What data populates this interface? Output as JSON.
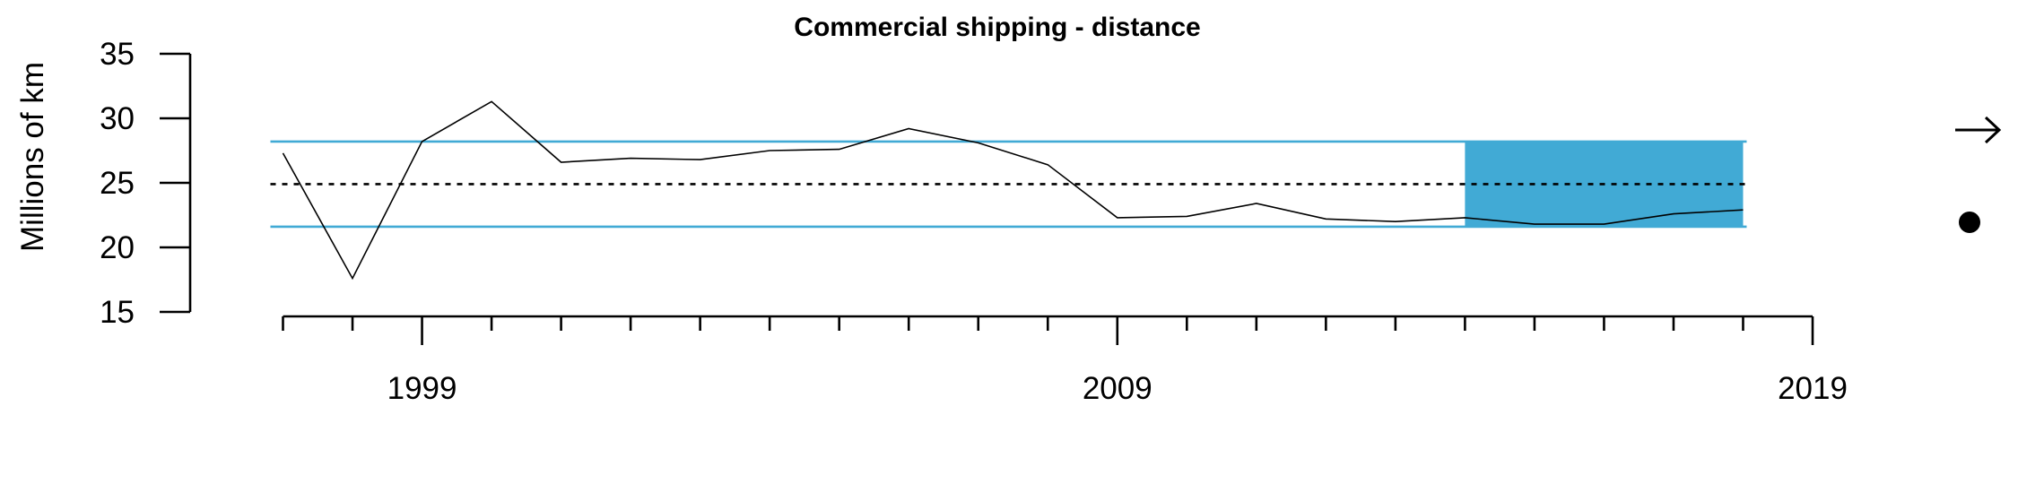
{
  "chart_data": {
    "type": "line",
    "title": "Commercial shipping - distance",
    "xlabel": "",
    "ylabel": "Millions of km",
    "xlim": [
      1996.8,
      2019
    ],
    "ylim": [
      15,
      35
    ],
    "y_ticks": [
      15,
      20,
      25,
      30,
      35
    ],
    "x_major_ticks": [
      1999,
      2009,
      2019
    ],
    "x_minor_ticks": [
      1997,
      1998,
      1999,
      2000,
      2001,
      2002,
      2003,
      2004,
      2005,
      2006,
      2007,
      2008,
      2009,
      2010,
      2011,
      2012,
      2013,
      2014,
      2015,
      2016,
      2017,
      2018,
      2019
    ],
    "grid": false,
    "series": [
      {
        "x": [
          1997,
          1998,
          1999,
          2000,
          2001,
          2002,
          2003,
          2004,
          2005,
          2006,
          2007,
          2008,
          2009,
          2010,
          2011,
          2012,
          2013,
          2014,
          2015,
          2016,
          2017,
          2018
        ],
        "values": [
          27.3,
          17.6,
          28.2,
          31.3,
          26.6,
          26.9,
          26.8,
          27.5,
          27.6,
          29.2,
          28.1,
          26.4,
          22.3,
          22.4,
          23.4,
          22.2,
          22.0,
          22.3,
          21.8,
          21.8,
          22.6,
          22.9
        ]
      }
    ],
    "reference_lines": {
      "mean": 24.9,
      "upper_sd": 28.2,
      "lower_sd": 21.6
    },
    "highlight_x_range": [
      2014,
      2018
    ],
    "colors": {
      "sd_line": "#41aad5",
      "highlight": "#41aad5",
      "series": "#000000",
      "mean_line": "#000000"
    },
    "indicators": {
      "trend": "arrow-right-icon",
      "mean_status": "filled-circle-icon"
    }
  }
}
